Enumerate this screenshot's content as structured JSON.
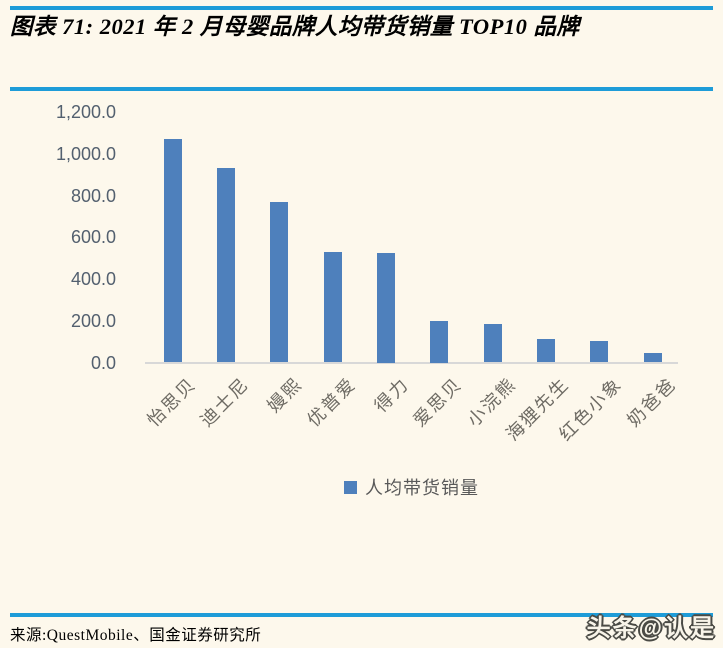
{
  "page": {
    "title": "图表 71: 2021 年 2 月母婴品牌人均带货销量 TOP10 品牌",
    "source": "来源:QuestMobile、国金证券研究所",
    "watermark": "头条@认是"
  },
  "colors": {
    "background": "#FDF8EC",
    "rule_blue": "#1E9CD8",
    "bar_blue": "#4E80BC",
    "axis_line": "#D8D8D8",
    "y_tick_label": "#53606F",
    "x_label": "#6E6B64",
    "legend_text": "#595959",
    "title_text": "#000000"
  },
  "chart_data": {
    "type": "bar",
    "title": "2021 年 2 月母婴品牌人均带货销量 TOP10 品牌",
    "categories": [
      "怡思贝",
      "迪士尼",
      "嫚熙",
      "优普爱",
      "得力",
      "爱思贝",
      "小浣熊",
      "海狸先生",
      "红色小象",
      "奶爸爸"
    ],
    "values": [
      1070,
      930,
      770,
      530,
      525,
      200,
      185,
      112,
      105,
      47
    ],
    "series_name": "人均带货销量",
    "legend": [
      "人均带货销量"
    ],
    "legend_position": "bottom",
    "xlabel": "",
    "ylabel": "",
    "ylim": [
      0,
      1200
    ],
    "ytick_step": 200,
    "ytick_labels": [
      "0.0",
      "200.0",
      "400.0",
      "600.0",
      "800.0",
      "1,000.0",
      "1,200.0"
    ],
    "grid": false
  }
}
